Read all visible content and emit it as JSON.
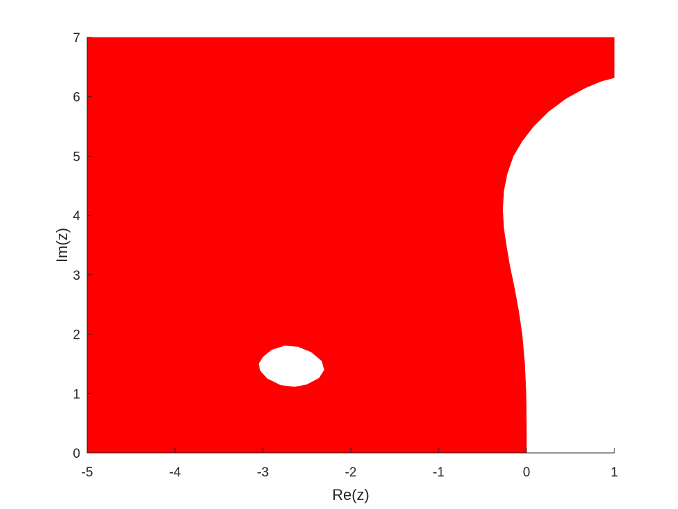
{
  "chart_data": {
    "type": "area",
    "title": "",
    "xlabel": "Re(z)",
    "ylabel": "Im(z)",
    "xlim": [
      -5,
      1
    ],
    "ylim": [
      0,
      7
    ],
    "xticks": [
      -5,
      -4,
      -3,
      -2,
      -1,
      0,
      1
    ],
    "yticks": [
      0,
      1,
      2,
      3,
      4,
      5,
      6,
      7
    ],
    "xtick_labels": [
      "-5",
      "-4",
      "-3",
      "-2",
      "-1",
      "0",
      "1"
    ],
    "ytick_labels": [
      "0",
      "1",
      "2",
      "3",
      "4",
      "5",
      "6",
      "7"
    ],
    "grid": false,
    "fill_color": "#ff0000",
    "axis_color": "#262626",
    "region_boundary": {
      "x": [
        0.0,
        0.0,
        -0.005,
        -0.02,
        -0.05,
        -0.09,
        -0.14,
        -0.19,
        -0.23,
        -0.26,
        -0.27,
        -0.26,
        -0.22,
        -0.15,
        -0.05,
        0.08,
        0.25,
        0.45,
        0.67,
        0.85,
        1.0
      ],
      "y": [
        0.0,
        0.5,
        1.0,
        1.5,
        2.0,
        2.4,
        2.8,
        3.15,
        3.5,
        3.8,
        4.1,
        4.4,
        4.7,
        5.0,
        5.25,
        5.5,
        5.75,
        5.97,
        6.15,
        6.26,
        6.32
      ]
    },
    "hole": {
      "x": [
        -3.05,
        -3.0,
        -2.9,
        -2.75,
        -2.6,
        -2.45,
        -2.33,
        -2.3,
        -2.36,
        -2.5,
        -2.64,
        -2.8,
        -2.95,
        -3.03
      ],
      "y": [
        1.5,
        1.62,
        1.74,
        1.81,
        1.79,
        1.7,
        1.55,
        1.4,
        1.26,
        1.15,
        1.11,
        1.14,
        1.25,
        1.38
      ]
    }
  }
}
